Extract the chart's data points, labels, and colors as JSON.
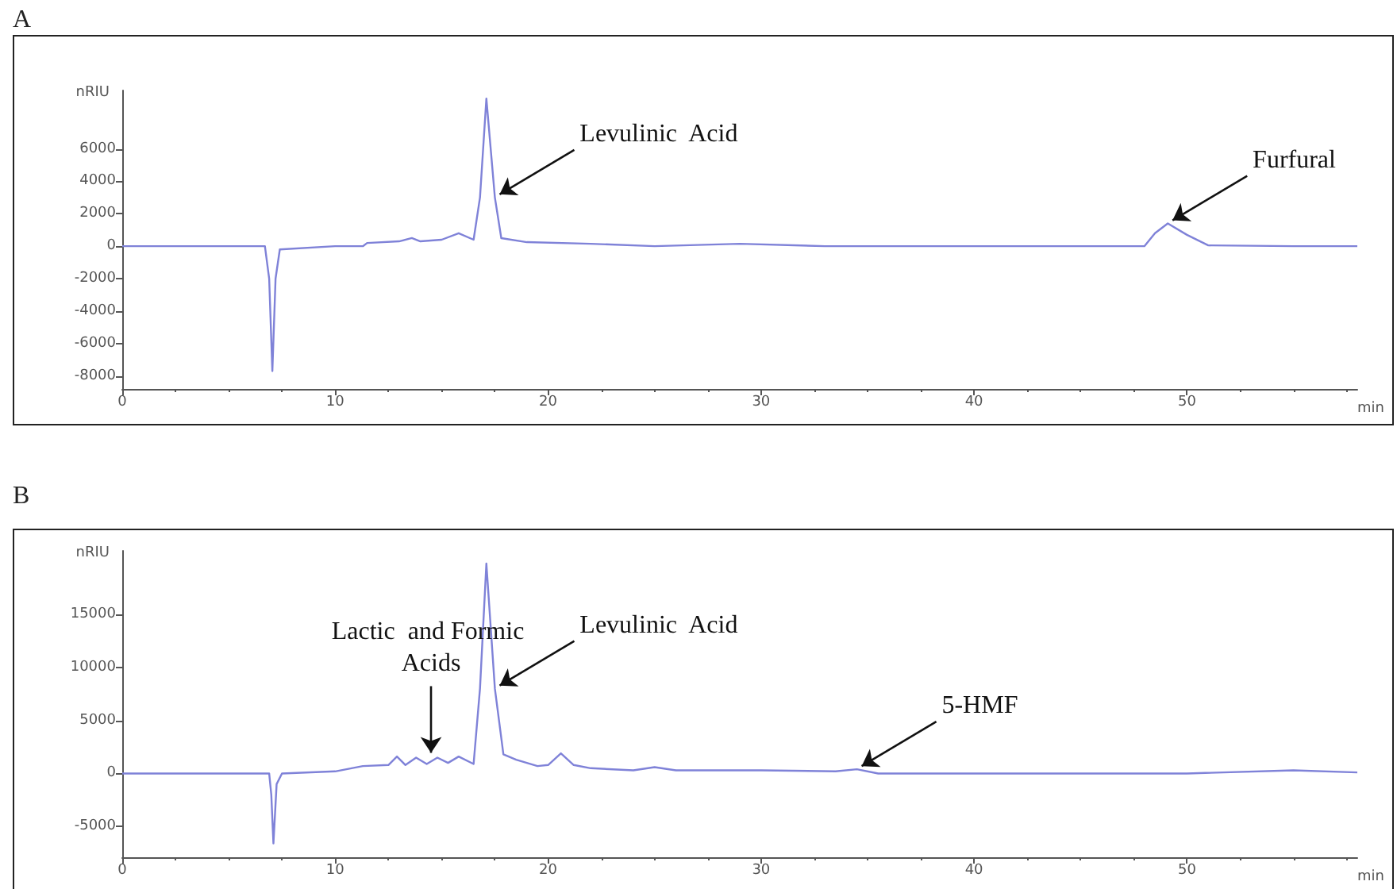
{
  "chart_data": [
    {
      "type": "line",
      "title": "A",
      "xlabel": "min",
      "ylabel": "nRIU",
      "series": [
        {
          "color": "#7f82d8",
          "x": [
            0,
            6.7,
            6.9,
            7.05,
            7.2,
            7.4,
            10,
            11.3,
            11.5,
            13,
            13.6,
            14,
            15,
            15.8,
            16.5,
            16.8,
            17.1,
            17.5,
            17.8,
            19,
            22,
            25,
            29,
            33,
            40,
            48,
            48.5,
            49.1,
            50,
            51,
            55,
            58
          ],
          "values": [
            0,
            0,
            -2000,
            -7700,
            -2000,
            -200,
            0,
            0,
            200,
            300,
            500,
            300,
            400,
            800,
            400,
            3000,
            9100,
            3000,
            500,
            250,
            150,
            0,
            150,
            0,
            0,
            0,
            800,
            1400,
            700,
            50,
            0,
            0
          ]
        }
      ],
      "xlim": [
        0,
        58
      ],
      "xticks": [
        0,
        10,
        20,
        30,
        40,
        50
      ],
      "ylim": [
        -8800,
        9600
      ],
      "yticks": [
        -8000,
        -6000,
        -4000,
        -2000,
        0,
        2000,
        4000,
        6000
      ],
      "annotations": [
        {
          "text": "Levulinic  Acid",
          "x": 17.5,
          "y": 3000
        },
        {
          "text": "Furfural",
          "x": 49.1,
          "y": 1400
        }
      ],
      "grid": false,
      "marker": "none",
      "line_style": "solid"
    },
    {
      "type": "line",
      "title": "B",
      "xlabel": "min",
      "ylabel": "nRIU",
      "series": [
        {
          "color": "#7f82d8",
          "x": [
            0,
            6.9,
            7.0,
            7.1,
            7.25,
            7.5,
            10,
            11.3,
            12.5,
            12.9,
            13.3,
            13.8,
            14.3,
            14.8,
            15.3,
            15.8,
            16.5,
            16.8,
            17.1,
            17.5,
            17.9,
            18.5,
            19.5,
            20,
            20.6,
            21.2,
            22,
            24,
            25,
            26,
            30,
            33.5,
            34.5,
            35.5,
            40,
            50,
            55,
            58
          ],
          "values": [
            0,
            0,
            -2000,
            -6600,
            -1000,
            0,
            200,
            700,
            800,
            1600,
            800,
            1500,
            900,
            1500,
            1000,
            1600,
            900,
            8000,
            19800,
            8000,
            1800,
            1300,
            700,
            800,
            1900,
            800,
            500,
            300,
            600,
            300,
            300,
            200,
            400,
            0,
            0,
            0,
            300,
            100
          ]
        }
      ],
      "xlim": [
        0,
        58
      ],
      "xticks": [
        0,
        10,
        20,
        30,
        40,
        50
      ],
      "ylim": [
        -7900,
        21000
      ],
      "yticks": [
        -5000,
        0,
        5000,
        10000,
        15000
      ],
      "annotations": [
        {
          "text": "Lactic  and Formic Acids",
          "x": 14.8,
          "y": 1500
        },
        {
          "text": "Levulinic  Acid",
          "x": 17.5,
          "y": 8000
        },
        {
          "text": "5-HMF",
          "x": 34.5,
          "y": 400
        }
      ],
      "grid": false,
      "marker": "none",
      "line_style": "solid"
    }
  ]
}
